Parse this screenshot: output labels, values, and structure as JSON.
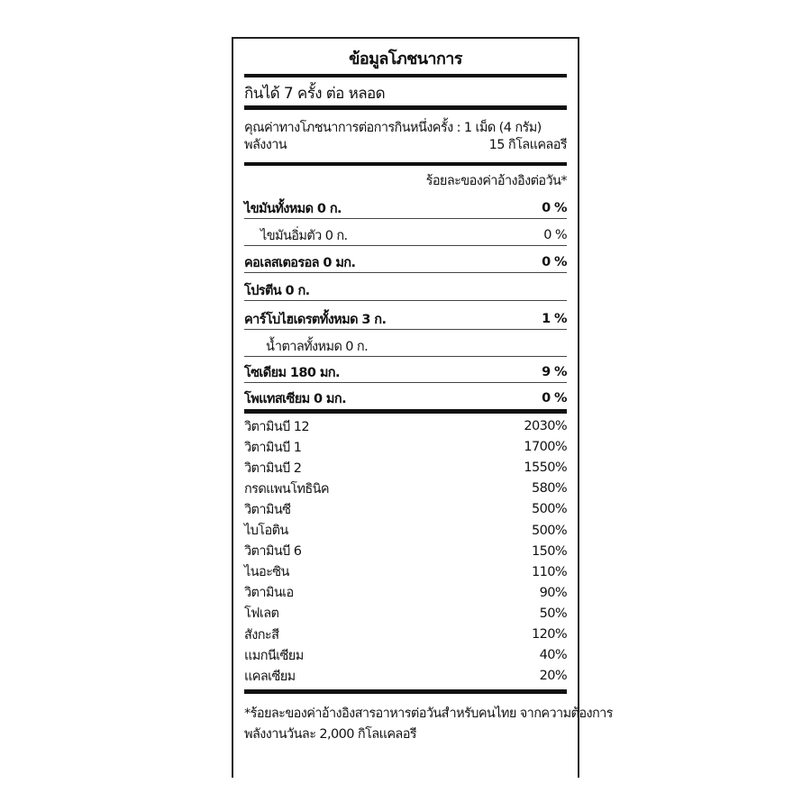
{
  "title": "ข้อมูลโภชนาการ",
  "servings": "กินได้ 7 ครั้ง ต่อ หลอด",
  "serving_size": "คุณค่าทางโภชนาการต่อการกินหนึ่งครั้ง : 1 เม็ด (4 กรัม)",
  "energy": {
    "label": "พลังงาน",
    "value": "15 กิโลแคลอรี"
  },
  "dv_header": "ร้อยละของค่าอ้างอิงต่อวัน*",
  "nutrients": [
    {
      "label": "ไขมันทั้งหมด 0 ก.",
      "value": "0 %"
    },
    {
      "label": "ไขมันอิ่มตัว 0 ก.",
      "value": "0 %"
    },
    {
      "label": "คอเลสเตอรอล 0 มก.",
      "value": "0 %"
    },
    {
      "label": "โปรตีน 0 ก.",
      "value": ""
    },
    {
      "label": "คาร์โบไฮเดรตทั้งหมด 3 ก.",
      "value": "1 %"
    },
    {
      "label": "น้ำตาลทั้งหมด 0 ก.",
      "value": ""
    },
    {
      "label": "โซเดียม 180 มก.",
      "value": "9 %"
    },
    {
      "label": "โพแทสเซียม 0 มก.",
      "value": "0 %"
    }
  ],
  "vitamins": [
    {
      "label": "วิตามินบี 12",
      "value": "2030%"
    },
    {
      "label": "วิตามินบี 1",
      "value": "1700%"
    },
    {
      "label": "วิตามินบี 2",
      "value": "1550%"
    },
    {
      "label": "กรดแพนโทธินิค",
      "value": "580%"
    },
    {
      "label": "วิตามินซี",
      "value": "500%"
    },
    {
      "label": "ไบโอติน",
      "value": "500%"
    },
    {
      "label": "วิตามินบี 6",
      "value": "150%"
    },
    {
      "label": "ไนอะซิน",
      "value": "110%"
    },
    {
      "label": "วิตามินเอ",
      "value": "90%"
    },
    {
      "label": "โฟเลต",
      "value": "50%"
    },
    {
      "label": "สังกะสี",
      "value": "120%"
    },
    {
      "label": "แมกนีเซียม",
      "value": "40%"
    },
    {
      "label": "แคลเซียม",
      "value": "20%"
    }
  ],
  "footnote": [
    "*ร้อยละของค่าอ้างอิงสารอาหารต่อวันสำหรับคนไทย จากความต้องการ",
    "พลังงานวันละ 2,000 กิโลแคลอรี"
  ]
}
